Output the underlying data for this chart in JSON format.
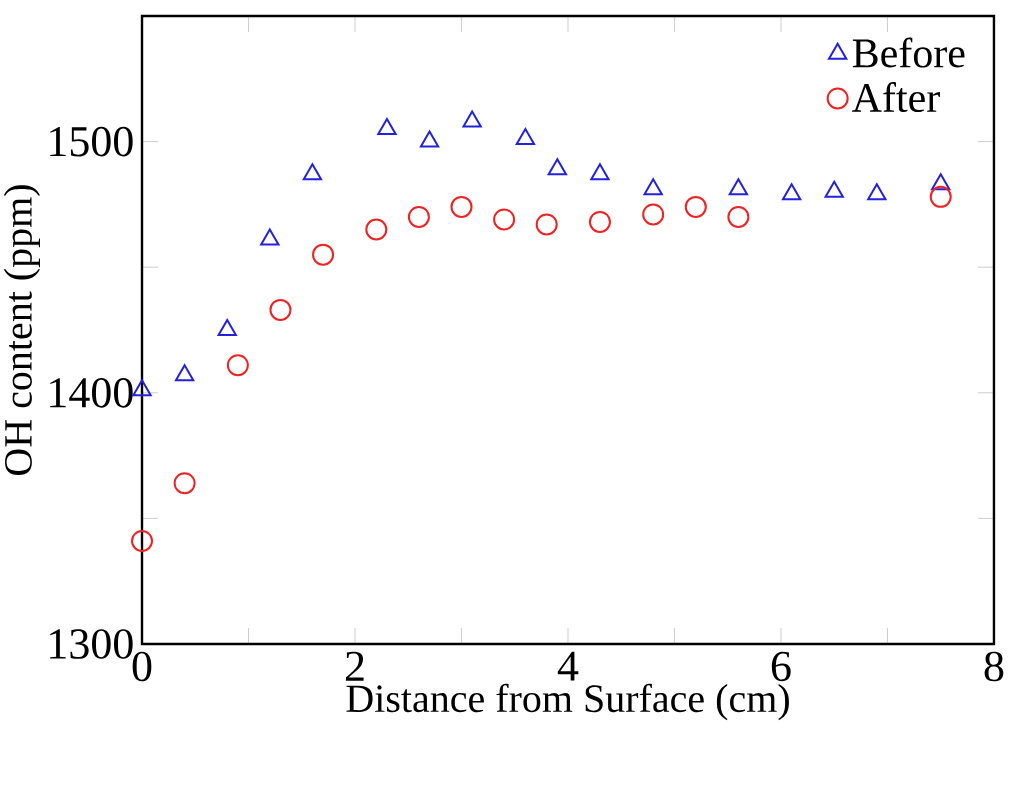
{
  "chart_data": {
    "type": "scatter",
    "xlabel": "Distance from Surface (cm)",
    "ylabel": "OH content (ppm)",
    "xlim": [
      0,
      8
    ],
    "ylim": [
      1300,
      1550
    ],
    "xticks": [
      0,
      {
        "value": 1,
        "label": null
      },
      2,
      {
        "value": 3,
        "label": null
      },
      4,
      {
        "value": 5,
        "label": null
      },
      6,
      {
        "value": 7,
        "label": null
      },
      8
    ],
    "yticks": [
      1300,
      {
        "value": 1350,
        "label": null
      },
      1400,
      {
        "value": 1450,
        "label": null
      },
      1500
    ],
    "legend": "top right",
    "grid": false,
    "series": [
      {
        "name": "Before",
        "color": "#2222dd",
        "marker": "triangle",
        "x": [
          0,
          0.4,
          0.8,
          1.2,
          1.6,
          2.3,
          2.7,
          3.1,
          3.6,
          3.9,
          4.3,
          4.8,
          5.6,
          6.1,
          6.5,
          6.9,
          7.5
        ],
        "values": [
          1401,
          1407,
          1425,
          1461,
          1487,
          1505,
          1500,
          1508,
          1501,
          1489,
          1487,
          1481,
          1481,
          1479,
          1480,
          1479,
          1483
        ]
      },
      {
        "name": "After",
        "color": "#ee2222",
        "marker": "circle",
        "x": [
          0,
          0.4,
          0.9,
          1.3,
          1.7,
          2.2,
          2.6,
          3.0,
          3.4,
          3.8,
          4.3,
          4.8,
          5.2,
          5.6,
          7.5
        ],
        "values": [
          1341,
          1364,
          1411,
          1433,
          1455,
          1465,
          1470,
          1474,
          1469,
          1467,
          1468,
          1471,
          1474,
          1470,
          1478
        ]
      }
    ]
  }
}
